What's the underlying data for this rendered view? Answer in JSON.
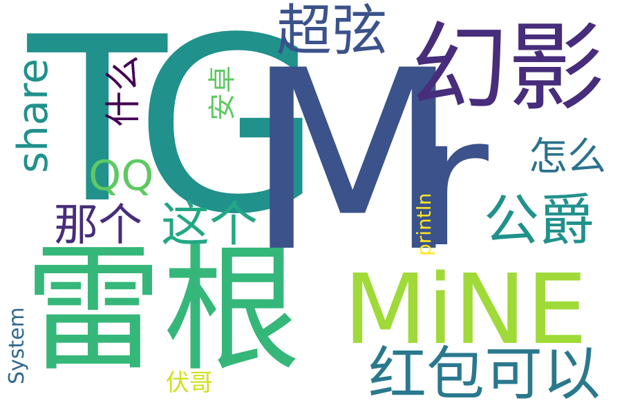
{
  "words": [
    {
      "id": "T",
      "text": "T",
      "color": "#21918c",
      "rotated": false
    },
    {
      "id": "G",
      "text": "G",
      "color": "#21918c",
      "rotated": false
    },
    {
      "id": "M",
      "text": "M",
      "color": "#3b528b",
      "rotated": false
    },
    {
      "id": "r",
      "text": "r",
      "color": "#3b528b",
      "rotated": false
    },
    {
      "id": "huanying",
      "text": "幻影",
      "color": "#472d7b",
      "rotated": false
    },
    {
      "id": "chaoxian",
      "text": "超弦",
      "color": "#3b528b",
      "rotated": false
    },
    {
      "id": "leigen",
      "text": "雷根",
      "color": "#35b779",
      "rotated": false
    },
    {
      "id": "mine",
      "text": "MiNE",
      "color": "#a0da39",
      "rotated": false
    },
    {
      "id": "hongbao",
      "text": "红包可以",
      "color": "#2a788e",
      "rotated": false
    },
    {
      "id": "gongjue",
      "text": "公爵",
      "color": "#21918c",
      "rotated": false
    },
    {
      "id": "zhege",
      "text": "这个",
      "color": "#22a884",
      "rotated": false
    },
    {
      "id": "nage",
      "text": "那个",
      "color": "#472d7b",
      "rotated": false
    },
    {
      "id": "zenme",
      "text": "怎么",
      "color": "#2c728e",
      "rotated": false
    },
    {
      "id": "share",
      "text": "share",
      "color": "#21918c",
      "rotated": true
    },
    {
      "id": "shenme",
      "text": "什么",
      "color": "#440154",
      "rotated": true
    },
    {
      "id": "qq",
      "text": "QQ",
      "color": "#5ec962",
      "rotated": false
    },
    {
      "id": "anzhuo",
      "text": "安卓",
      "color": "#5ec962",
      "rotated": true
    },
    {
      "id": "println",
      "text": "println",
      "color": "#fde725",
      "rotated": true
    },
    {
      "id": "system",
      "text": "System",
      "color": "#31688e",
      "rotated": true
    },
    {
      "id": "fuge",
      "text": "伏哥",
      "color": "#d0e11c",
      "rotated": false
    }
  ]
}
